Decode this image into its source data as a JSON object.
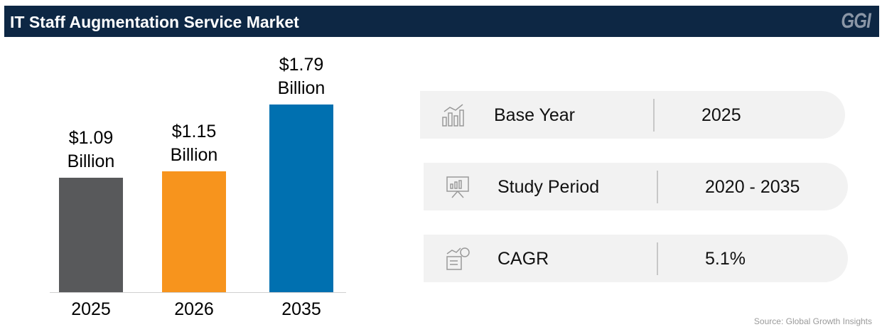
{
  "chart_data": {
    "type": "bar",
    "title": "IT Staff Augmentation Service Market",
    "categories": [
      "2025",
      "2026",
      "2035"
    ],
    "values": [
      1.09,
      1.15,
      1.79
    ],
    "value_labels": [
      "$1.09 Billion",
      "$1.15 Billion",
      "$1.79 Billion"
    ],
    "colors": [
      "#58595b",
      "#f7941d",
      "#0070b0"
    ]
  },
  "brand": "GGI",
  "info": [
    {
      "label": "Base Year",
      "value": "2025"
    },
    {
      "label": "Study Period",
      "value": "2020 - 2035"
    },
    {
      "label": "CAGR",
      "value": "5.1%"
    }
  ],
  "source": "Source: Global Growth Insights"
}
